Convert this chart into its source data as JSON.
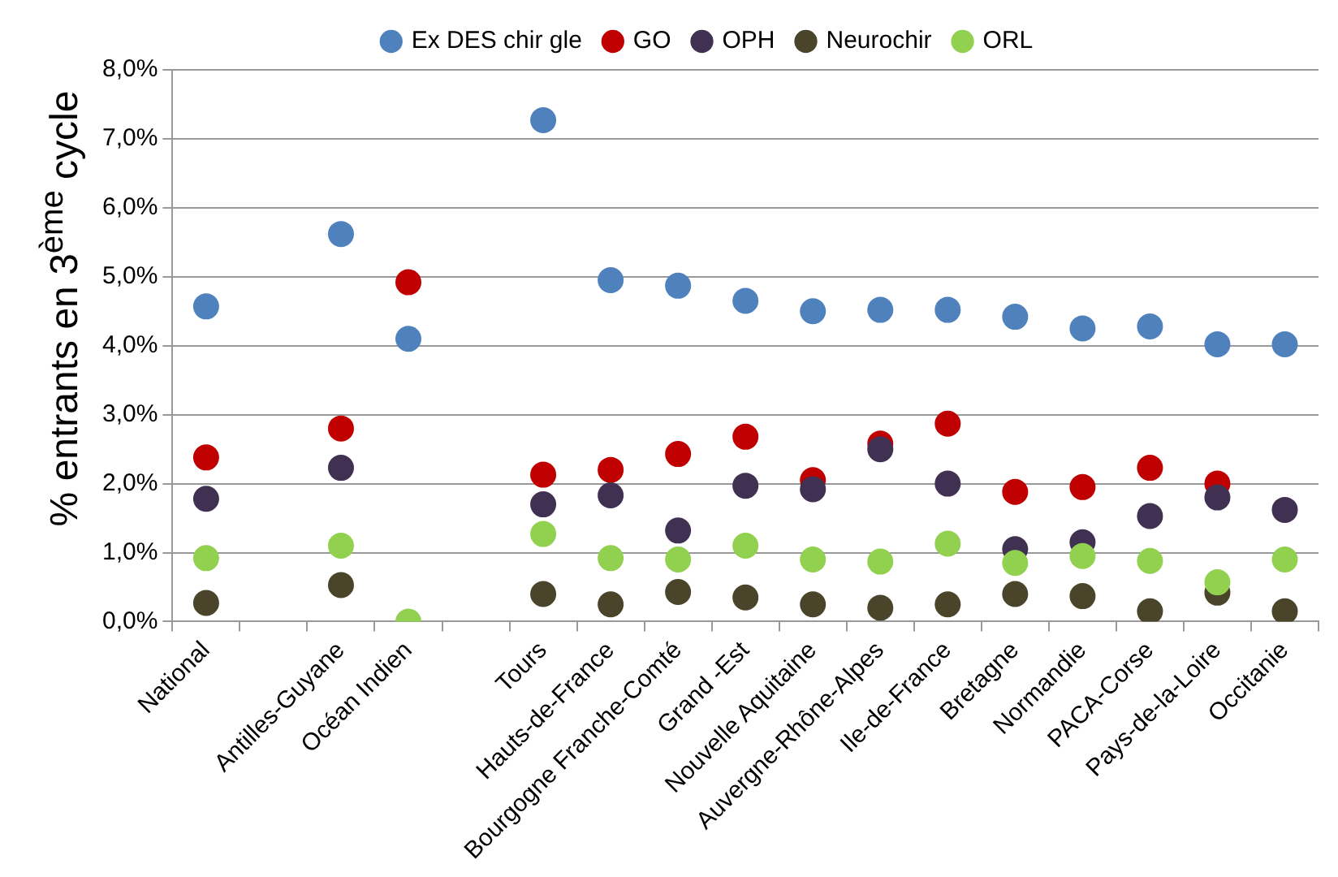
{
  "chart_data": {
    "type": "scatter",
    "ylabel": "% entrants  en 3$^{ème}$ cycle",
    "categories": [
      "National",
      null,
      "Antilles-Guyane",
      "Océan Indien",
      null,
      "Tours",
      "Hauts-de-France",
      "Bourgogne Franche-Comté",
      "Grand -Est",
      "Nouvelle Aquitaine",
      "Auvergne-Rhône-Alpes",
      "Ile-de-France",
      "Bretagne",
      "Normandie",
      "PACA-Corse",
      "Pays-de-la-Loire",
      "Occitanie"
    ],
    "series": [
      {
        "name": "Ex DES chir gle",
        "color": "#4f81bd",
        "values": [
          4.57,
          null,
          5.62,
          4.1,
          null,
          7.27,
          4.95,
          4.87,
          4.65,
          4.5,
          4.52,
          4.52,
          4.42,
          4.25,
          4.28,
          4.02,
          4.02
        ]
      },
      {
        "name": "GO",
        "color": "#c00000",
        "values": [
          2.38,
          null,
          2.8,
          4.92,
          null,
          2.13,
          2.2,
          2.43,
          2.68,
          2.05,
          2.58,
          2.87,
          1.88,
          1.95,
          2.23,
          2.0,
          null
        ]
      },
      {
        "name": "OPH",
        "color": "#403152",
        "values": [
          1.78,
          null,
          2.23,
          null,
          null,
          1.7,
          1.83,
          1.32,
          1.97,
          1.92,
          2.5,
          2.0,
          1.05,
          1.15,
          1.53,
          1.8,
          1.62
        ]
      },
      {
        "name": "Neurochir",
        "color": "#4a452a",
        "values": [
          0.27,
          null,
          0.53,
          null,
          null,
          0.4,
          0.25,
          0.43,
          0.35,
          0.25,
          0.2,
          0.25,
          0.4,
          0.37,
          0.15,
          0.42,
          0.15
        ]
      },
      {
        "name": "ORL",
        "color": "#92d050",
        "values": [
          0.92,
          null,
          1.1,
          0.0,
          null,
          1.27,
          0.92,
          0.9,
          1.1,
          0.9,
          0.87,
          1.13,
          0.85,
          0.95,
          0.88,
          0.57,
          0.9
        ]
      }
    ],
    "ylim": [
      0,
      8
    ],
    "yticks": [
      {
        "value": 0,
        "label": "0,0%"
      },
      {
        "value": 1,
        "label": "1,0%"
      },
      {
        "value": 2,
        "label": "2,0%"
      },
      {
        "value": 3,
        "label": "3,0%"
      },
      {
        "value": 4,
        "label": "4,0%"
      },
      {
        "value": 5,
        "label": "5,0%"
      },
      {
        "value": 6,
        "label": "6,0%"
      },
      {
        "value": 7,
        "label": "7,0%"
      },
      {
        "value": 8,
        "label": "8,0%"
      }
    ],
    "grid": "y",
    "legend": "top",
    "marker": "circle"
  }
}
